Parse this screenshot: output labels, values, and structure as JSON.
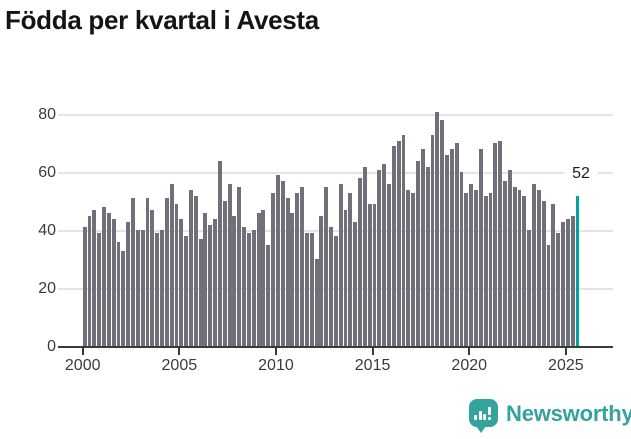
{
  "title": "Födda per kvartal i Avesta",
  "chart": {
    "y_ticks": [
      "0",
      "20",
      "40",
      "60",
      "80"
    ],
    "x_ticks": [
      "2000",
      "2005",
      "2010",
      "2015",
      "2020",
      "2025"
    ],
    "annotation": "52"
  },
  "branding": {
    "name": "Newsworthy",
    "icon": "newsworthy-speech-bubble-chart-icon",
    "color": "#35a39d"
  },
  "colors": {
    "bar": "#70707a",
    "highlight": "#00a3a0",
    "grid": "#e4e4e4",
    "axis": "#3a3a3a",
    "tick_text": "#3b3b3b",
    "title_text": "#141414"
  },
  "chart_data": {
    "type": "bar",
    "title": "Födda per kvartal i Avesta",
    "frequency": "quarterly",
    "ylim": [
      0,
      85
    ],
    "y_gridlines": [
      20,
      40,
      60,
      80
    ],
    "x_tick_years": [
      2000,
      2005,
      2010,
      2015,
      2020,
      2025
    ],
    "grid": true,
    "legend_position": "none",
    "highlight": {
      "period": "2025-Q3",
      "value": 52,
      "label": "52",
      "color": "#00a3a0"
    },
    "series": [
      {
        "year": 2000,
        "values": [
          41,
          45,
          47,
          39
        ]
      },
      {
        "year": 2001,
        "values": [
          48,
          46,
          44,
          36
        ]
      },
      {
        "year": 2002,
        "values": [
          33,
          43,
          51,
          40
        ]
      },
      {
        "year": 2003,
        "values": [
          40,
          51,
          47,
          39
        ]
      },
      {
        "year": 2004,
        "values": [
          40,
          51,
          56,
          49
        ]
      },
      {
        "year": 2005,
        "values": [
          44,
          38,
          54,
          52
        ]
      },
      {
        "year": 2006,
        "values": [
          37,
          46,
          42,
          44
        ]
      },
      {
        "year": 2007,
        "values": [
          64,
          50,
          56,
          45
        ]
      },
      {
        "year": 2008,
        "values": [
          55,
          41,
          39,
          40
        ]
      },
      {
        "year": 2009,
        "values": [
          46,
          47,
          35,
          53
        ]
      },
      {
        "year": 2010,
        "values": [
          59,
          57,
          51,
          46
        ]
      },
      {
        "year": 2011,
        "values": [
          53,
          55,
          39,
          39
        ]
      },
      {
        "year": 2012,
        "values": [
          30,
          45,
          55,
          41
        ]
      },
      {
        "year": 2013,
        "values": [
          38,
          56,
          47,
          53
        ]
      },
      {
        "year": 2014,
        "values": [
          43,
          58,
          62,
          49
        ]
      },
      {
        "year": 2015,
        "values": [
          49,
          61,
          63,
          56
        ]
      },
      {
        "year": 2016,
        "values": [
          69,
          71,
          73,
          54
        ]
      },
      {
        "year": 2017,
        "values": [
          53,
          64,
          68,
          62
        ]
      },
      {
        "year": 2018,
        "values": [
          73,
          81,
          78,
          66
        ]
      },
      {
        "year": 2019,
        "values": [
          68,
          70,
          60,
          53
        ]
      },
      {
        "year": 2020,
        "values": [
          56,
          54,
          68,
          52
        ]
      },
      {
        "year": 2021,
        "values": [
          53,
          70,
          71,
          57
        ]
      },
      {
        "year": 2022,
        "values": [
          61,
          55,
          54,
          52
        ]
      },
      {
        "year": 2023,
        "values": [
          40,
          56,
          54,
          50
        ]
      },
      {
        "year": 2024,
        "values": [
          35,
          49,
          39,
          43
        ]
      },
      {
        "year": 2025,
        "values": [
          44,
          45,
          52
        ]
      }
    ]
  }
}
